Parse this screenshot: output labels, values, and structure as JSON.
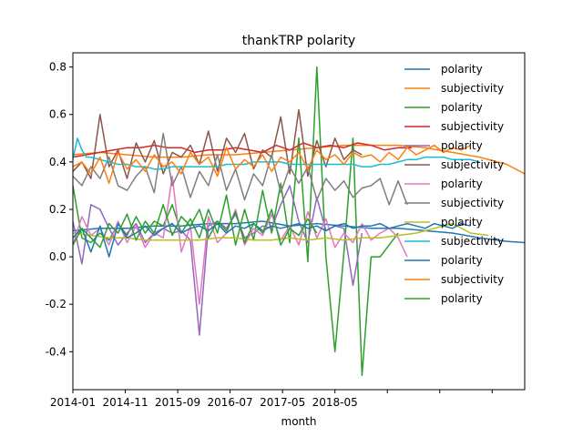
{
  "chart_data": {
    "type": "line",
    "title": "thankTRP polarity",
    "xlabel": "month",
    "ylabel": "",
    "xlim": [
      0,
      100
    ],
    "ylim": [
      -0.56,
      0.86
    ],
    "x_ticks": [
      {
        "pos": 0,
        "label": "2014-01"
      },
      {
        "pos": 11.6,
        "label": "2014-11"
      },
      {
        "pos": 23.2,
        "label": "2015-09"
      },
      {
        "pos": 34.8,
        "label": "2016-07"
      },
      {
        "pos": 46.4,
        "label": "2017-05"
      },
      {
        "pos": 58.0,
        "label": "2018-05"
      },
      {
        "pos": 69.6,
        "label": ""
      },
      {
        "pos": 81.2,
        "label": ""
      },
      {
        "pos": 92.8,
        "label": ""
      }
    ],
    "y_ticks": [
      -0.4,
      -0.2,
      0.0,
      0.2,
      0.4,
      0.6,
      0.8
    ],
    "grid": false,
    "legend_placement": "upper-right",
    "series": [
      {
        "name": "polarity",
        "color": "#1f77b4",
        "x": [
          0,
          6,
          12,
          18,
          24,
          30,
          36,
          42,
          48,
          54,
          60,
          66,
          72,
          78,
          84,
          90,
          96,
          100
        ],
        "values": [
          0.11,
          0.12,
          0.12,
          0.13,
          0.13,
          0.14,
          0.14,
          0.15,
          0.13,
          0.14,
          0.13,
          0.12,
          0.12,
          0.11,
          0.1,
          0.08,
          0.065,
          0.06
        ]
      },
      {
        "name": "subjectivity",
        "color": "#ff7f0e",
        "x": [
          0,
          6,
          12,
          18,
          24,
          30,
          36,
          42,
          48,
          54,
          60,
          66,
          72,
          78,
          84,
          90,
          96,
          100
        ],
        "values": [
          0.43,
          0.44,
          0.43,
          0.42,
          0.42,
          0.43,
          0.43,
          0.44,
          0.45,
          0.46,
          0.47,
          0.47,
          0.47,
          0.46,
          0.44,
          0.42,
          0.39,
          0.35
        ]
      },
      {
        "name": "polarity",
        "color": "#2ca02c",
        "x": [
          0,
          2,
          4,
          6,
          8,
          10,
          12,
          14,
          16,
          18,
          20,
          22,
          24,
          26,
          28,
          30,
          32,
          34,
          36,
          38,
          40,
          42,
          44,
          46,
          48,
          50,
          52,
          54,
          56,
          58,
          60,
          62,
          64,
          66,
          68,
          70,
          72
        ],
        "values": [
          0.3,
          0.08,
          0.06,
          0.1,
          0.07,
          0.14,
          0.09,
          0.17,
          0.1,
          0.15,
          0.13,
          0.22,
          0.1,
          0.16,
          0.08,
          0.2,
          0.1,
          0.26,
          0.05,
          0.2,
          0.07,
          0.28,
          0.1,
          0.31,
          0.06,
          0.5,
          -0.02,
          0.8,
          0.0,
          -0.4,
          0.02,
          0.5,
          -0.5,
          0.0,
          0.0,
          0.05,
          0.1
        ]
      },
      {
        "name": "subjectivity",
        "color": "#d62728",
        "x": [
          0,
          3,
          6,
          9,
          12,
          15,
          18,
          21,
          24,
          27,
          30,
          33,
          36,
          39,
          42,
          45,
          48,
          51,
          54,
          57,
          60,
          63,
          66,
          69,
          72,
          75
        ],
        "values": [
          0.42,
          0.43,
          0.44,
          0.45,
          0.46,
          0.46,
          0.47,
          0.46,
          0.46,
          0.44,
          0.45,
          0.45,
          0.46,
          0.45,
          0.44,
          0.47,
          0.45,
          0.48,
          0.46,
          0.47,
          0.46,
          0.48,
          0.47,
          0.45,
          0.46,
          0.46
        ]
      },
      {
        "name": "polarity",
        "color": "#9467bd",
        "x": [
          0,
          2,
          4,
          6,
          8,
          10,
          12,
          14,
          16,
          18,
          20,
          22,
          24,
          26,
          28,
          30,
          32,
          34,
          36,
          38,
          40,
          42,
          44,
          46,
          48,
          50,
          52,
          54,
          56,
          58,
          60,
          62,
          64
        ],
        "values": [
          0.15,
          -0.03,
          0.22,
          0.2,
          0.12,
          0.05,
          0.1,
          0.14,
          0.06,
          0.1,
          0.12,
          0.1,
          0.11,
          0.07,
          -0.33,
          0.13,
          0.15,
          0.12,
          0.18,
          0.08,
          0.1,
          0.13,
          0.12,
          0.22,
          0.3,
          0.15,
          0.06,
          0.25,
          0.11,
          0.13,
          0.12,
          -0.12,
          0.1
        ]
      },
      {
        "name": "subjectivity",
        "color": "#8c564b",
        "x": [
          0,
          2,
          4,
          6,
          8,
          10,
          12,
          14,
          16,
          18,
          20,
          22,
          24,
          26,
          28,
          30,
          32,
          34,
          36,
          38,
          40,
          42,
          44,
          46,
          48,
          50,
          52,
          54,
          56,
          58,
          60,
          62,
          64
        ],
        "values": [
          0.36,
          0.4,
          0.33,
          0.6,
          0.38,
          0.45,
          0.33,
          0.48,
          0.4,
          0.49,
          0.35,
          0.44,
          0.42,
          0.47,
          0.39,
          0.53,
          0.36,
          0.5,
          0.44,
          0.52,
          0.37,
          0.45,
          0.42,
          0.59,
          0.35,
          0.62,
          0.34,
          0.49,
          0.38,
          0.5,
          0.41,
          0.45,
          0.43
        ]
      },
      {
        "name": "polarity",
        "color": "#e377c2",
        "x": [
          0,
          2,
          4,
          6,
          8,
          10,
          12,
          14,
          16,
          18,
          20,
          22,
          24,
          26,
          28,
          30,
          32,
          34,
          36,
          38,
          40,
          42,
          44,
          46,
          48,
          50,
          52,
          54,
          56,
          58,
          60,
          62,
          64,
          66,
          68,
          70,
          72,
          74
        ],
        "values": [
          0.05,
          0.17,
          0.09,
          0.12,
          0.05,
          0.15,
          0.06,
          0.13,
          0.04,
          0.1,
          0.08,
          0.34,
          0.02,
          0.13,
          -0.2,
          0.17,
          0.06,
          0.1,
          0.2,
          0.05,
          0.12,
          0.09,
          0.18,
          0.07,
          0.13,
          0.05,
          0.19,
          0.08,
          0.16,
          0.04,
          0.1,
          0.06,
          0.14,
          0.07,
          0.1,
          0.12,
          0.08,
          0.0
        ]
      },
      {
        "name": "subjectivity",
        "color": "#7f7f7f",
        "x": [
          0,
          2,
          4,
          6,
          8,
          10,
          12,
          14,
          16,
          18,
          20,
          22,
          24,
          26,
          28,
          30,
          32,
          34,
          36,
          38,
          40,
          42,
          44,
          46,
          48,
          50,
          52,
          54,
          56,
          58,
          60,
          62,
          64,
          66,
          68,
          70,
          72,
          74
        ],
        "values": [
          0.34,
          0.3,
          0.38,
          0.33,
          0.42,
          0.3,
          0.28,
          0.34,
          0.38,
          0.27,
          0.52,
          0.3,
          0.38,
          0.25,
          0.36,
          0.3,
          0.43,
          0.28,
          0.37,
          0.24,
          0.35,
          0.3,
          0.43,
          0.27,
          0.38,
          0.31,
          0.38,
          0.24,
          0.33,
          0.28,
          0.32,
          0.25,
          0.29,
          0.3,
          0.33,
          0.22,
          0.32,
          0.22
        ]
      },
      {
        "name": "polarity",
        "color": "#bcbd22",
        "x": [
          0,
          4,
          8,
          12,
          16,
          20,
          24,
          28,
          32,
          36,
          40,
          44,
          48,
          52,
          56,
          60,
          64,
          68,
          72,
          76,
          80,
          84,
          88,
          92
        ],
        "values": [
          0.1,
          0.09,
          0.08,
          0.08,
          0.07,
          0.07,
          0.07,
          0.07,
          0.08,
          0.08,
          0.07,
          0.07,
          0.08,
          0.07,
          0.08,
          0.07,
          0.08,
          0.08,
          0.09,
          0.1,
          0.12,
          0.14,
          0.1,
          0.09
        ]
      },
      {
        "name": "subjectivity",
        "color": "#17becf",
        "x": [
          0,
          1,
          2,
          3,
          4,
          6,
          8,
          10,
          12,
          14,
          16,
          18,
          20,
          22,
          24,
          26,
          28,
          30,
          32,
          34,
          36,
          38,
          40,
          42,
          44,
          46,
          48,
          50,
          52,
          54,
          56,
          58,
          60,
          62,
          64,
          66,
          68,
          70,
          72,
          74,
          76,
          78,
          80,
          82,
          84,
          86,
          88,
          90
        ],
        "values": [
          0.41,
          0.5,
          0.45,
          0.42,
          0.42,
          0.41,
          0.4,
          0.39,
          0.39,
          0.38,
          0.38,
          0.37,
          0.37,
          0.38,
          0.38,
          0.38,
          0.38,
          0.38,
          0.38,
          0.39,
          0.39,
          0.39,
          0.4,
          0.4,
          0.4,
          0.4,
          0.39,
          0.39,
          0.39,
          0.39,
          0.39,
          0.39,
          0.39,
          0.39,
          0.38,
          0.38,
          0.39,
          0.39,
          0.4,
          0.41,
          0.41,
          0.42,
          0.42,
          0.42,
          0.41,
          0.41,
          0.41,
          0.4
        ]
      },
      {
        "name": "polarity",
        "color": "#1f77b4",
        "x": [
          0,
          2,
          4,
          6,
          8,
          10,
          12,
          14,
          16,
          18,
          20,
          22,
          24,
          26,
          28,
          30,
          32,
          34,
          36,
          38,
          40,
          42,
          44,
          46,
          48,
          50,
          52,
          54,
          56,
          58,
          60,
          62,
          64,
          66,
          68,
          70,
          72,
          74,
          76,
          78,
          80,
          82,
          84,
          86,
          88
        ],
        "values": [
          0.08,
          0.12,
          0.02,
          0.13,
          0.0,
          0.14,
          0.08,
          0.1,
          0.13,
          0.09,
          0.12,
          0.14,
          0.1,
          0.12,
          0.13,
          0.11,
          0.14,
          0.1,
          0.13,
          0.12,
          0.14,
          0.11,
          0.13,
          0.12,
          0.13,
          0.14,
          0.12,
          0.13,
          0.11,
          0.13,
          0.14,
          0.12,
          0.13,
          0.13,
          0.14,
          0.12,
          0.13,
          0.14,
          0.13,
          0.12,
          0.14,
          0.13,
          0.12,
          0.14,
          0.13
        ]
      },
      {
        "name": "subjectivity",
        "color": "#ff7f0e",
        "x": [
          0,
          2,
          4,
          6,
          8,
          10,
          12,
          14,
          16,
          18,
          20,
          22,
          24,
          26,
          28,
          30,
          32,
          34,
          36,
          38,
          40,
          42,
          44,
          46,
          48,
          50,
          52,
          54,
          56,
          58,
          60,
          62,
          64,
          66,
          68,
          70,
          72,
          74,
          76,
          78,
          80,
          82,
          84,
          86,
          88
        ],
        "values": [
          0.38,
          0.4,
          0.35,
          0.42,
          0.31,
          0.44,
          0.37,
          0.41,
          0.36,
          0.43,
          0.38,
          0.4,
          0.35,
          0.44,
          0.39,
          0.42,
          0.34,
          0.46,
          0.37,
          0.41,
          0.38,
          0.43,
          0.36,
          0.42,
          0.4,
          0.44,
          0.37,
          0.45,
          0.41,
          0.43,
          0.39,
          0.44,
          0.42,
          0.43,
          0.4,
          0.44,
          0.41,
          0.46,
          0.43,
          0.45,
          0.47,
          0.44,
          0.46,
          0.45,
          0.47
        ]
      },
      {
        "name": "polarity",
        "color": "#2ca02c",
        "x": [
          0,
          2,
          4,
          6,
          8,
          10,
          12,
          14,
          16,
          18,
          20,
          22,
          24,
          26,
          28,
          30,
          32,
          34,
          36,
          38,
          40,
          42,
          44,
          46,
          48,
          50,
          52,
          54
        ],
        "values": [
          0.05,
          0.12,
          0.08,
          0.04,
          0.14,
          0.1,
          0.18,
          0.07,
          0.15,
          0.1,
          0.22,
          0.09,
          0.17,
          0.13,
          0.2,
          0.08,
          0.15,
          0.11,
          0.19,
          0.06,
          0.14,
          0.1,
          0.2,
          0.05,
          0.12,
          0.09,
          0.16,
          0.1
        ]
      }
    ]
  }
}
